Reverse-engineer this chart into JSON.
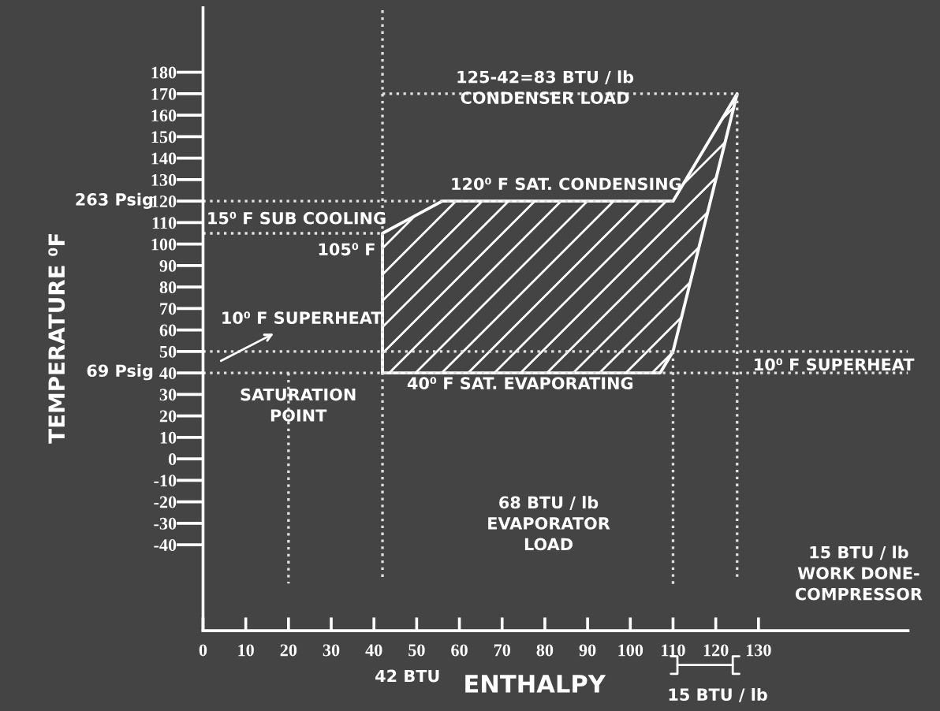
{
  "chart_data": {
    "type": "line",
    "xlabel": "ENTHALPY",
    "ylabel": "TEMPERATURE ⁰F",
    "xlim": [
      0,
      165
    ],
    "ylim": [
      -80,
      210
    ],
    "xticks": [
      0,
      10,
      20,
      30,
      40,
      50,
      60,
      70,
      80,
      90,
      100,
      110,
      120,
      130
    ],
    "yticks": [
      -40,
      -30,
      -20,
      -10,
      0,
      10,
      20,
      30,
      40,
      50,
      60,
      70,
      80,
      90,
      100,
      110,
      120,
      130,
      140,
      150,
      160,
      170,
      180
    ],
    "grid": false,
    "marker": "none",
    "series": [
      {
        "type": "area",
        "color": "#ffffff",
        "line_style": "solid",
        "x": [
          42,
          42,
          56,
          110,
          125,
          110,
          107,
          42
        ],
        "values": [
          40,
          105,
          120,
          120,
          170,
          50,
          40,
          40
        ]
      },
      {
        "color": "#e0e0e0",
        "line_style": "dotted",
        "x": [
          42,
          125
        ],
        "values": [
          170,
          170
        ]
      },
      {
        "color": "#e0e0e0",
        "line_style": "dotted",
        "x": [
          0,
          110
        ],
        "values": [
          120,
          120
        ]
      },
      {
        "color": "#e0e0e0",
        "line_style": "dotted",
        "x": [
          0,
          42
        ],
        "values": [
          105,
          105
        ]
      },
      {
        "color": "#e0e0e0",
        "line_style": "dotted",
        "x": [
          0,
          165
        ],
        "values": [
          50,
          50
        ]
      },
      {
        "color": "#e0e0e0",
        "line_style": "dotted",
        "x": [
          0,
          165
        ],
        "values": [
          40,
          40
        ]
      },
      {
        "color": "#e0e0e0",
        "line_style": "dotted",
        "x": [
          42,
          42
        ],
        "values": [
          -55,
          210
        ]
      },
      {
        "color": "#e0e0e0",
        "line_style": "dotted",
        "x": [
          110,
          110
        ],
        "values": [
          50,
          -60
        ]
      },
      {
        "color": "#e0e0e0",
        "line_style": "dotted",
        "x": [
          125,
          125
        ],
        "values": [
          170,
          -55
        ]
      },
      {
        "color": "#e0e0e0",
        "line_style": "dotted",
        "x": [
          20,
          20
        ],
        "values": [
          40,
          -58
        ]
      }
    ],
    "annotations": [
      "125-42=83 BTU / lb\nCONDENSER LOAD",
      "120⁰ F SAT. CONDENSING",
      "15⁰ F SUB COOLING",
      "105⁰ F",
      "10⁰ F SUPERHEAT",
      "SATURATION\nPOINT",
      "40⁰ F SAT. EVAPORATING",
      "10⁰ F SUPERHEAT",
      "263 Psig",
      "69 Psig",
      "68 BTU / lb\nEVAPORATOR\nLOAD",
      "15 BTU / lb\nWORK DONE-\nCOMPRESSOR",
      "42 BTU",
      "15 BTU / lb"
    ]
  }
}
